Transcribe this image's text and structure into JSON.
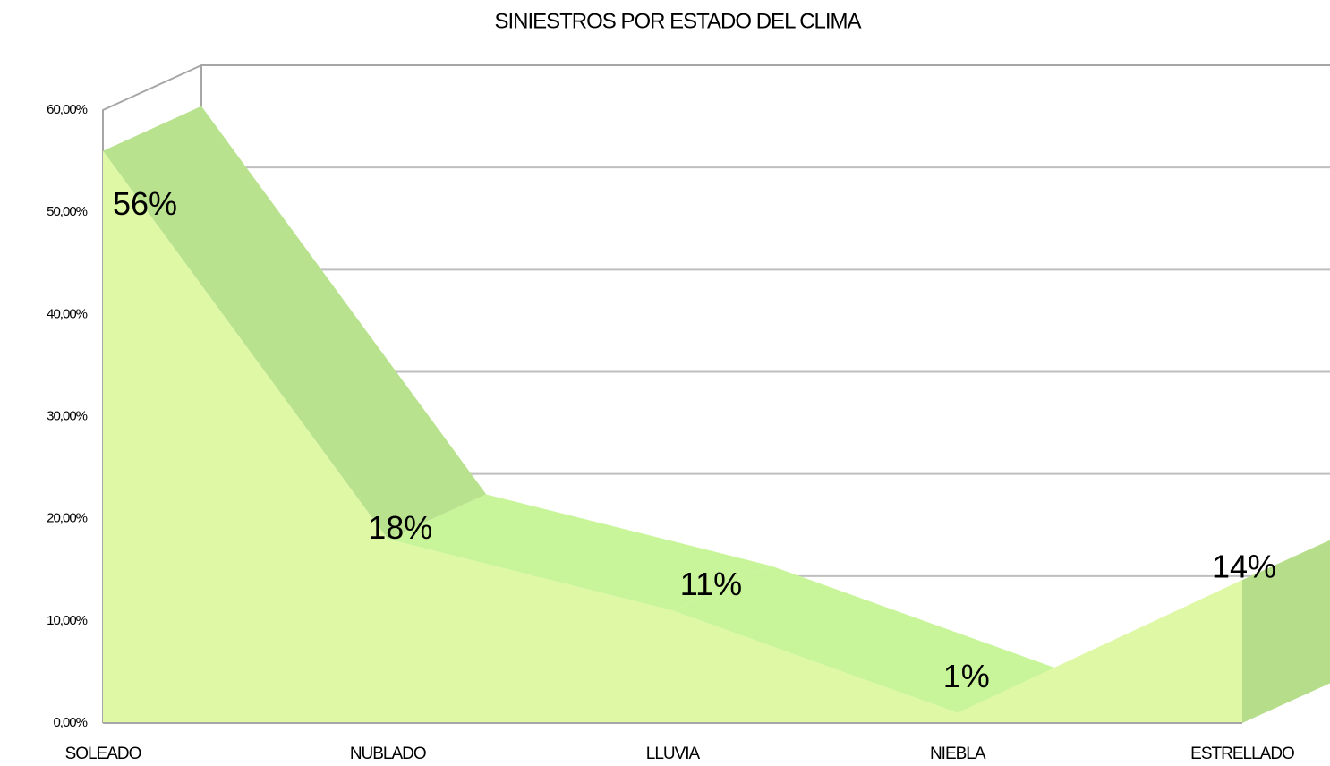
{
  "chart_data": {
    "type": "area",
    "title": "SINIESTROS POR ESTADO DEL CLIMA",
    "categories": [
      "SOLEADO",
      "NUBLADO",
      "LLUVIA",
      "NIEBLA",
      "ESTRELLADO"
    ],
    "values": [
      56,
      18,
      11,
      1,
      14
    ],
    "value_labels": [
      "56%",
      "18%",
      "11%",
      "1%",
      "14%"
    ],
    "color": "#dff8a6",
    "ylim": [
      0,
      60
    ],
    "yticks": [
      {
        "value": 0,
        "label": "0,00%"
      },
      {
        "value": 10,
        "label": "10,00%"
      },
      {
        "value": 20,
        "label": "20,00%"
      },
      {
        "value": 30,
        "label": "30,00%"
      },
      {
        "value": 40,
        "label": "40,00%"
      },
      {
        "value": 50,
        "label": "50,00%"
      },
      {
        "value": 60,
        "label": "60,00%"
      }
    ],
    "grid": true
  }
}
